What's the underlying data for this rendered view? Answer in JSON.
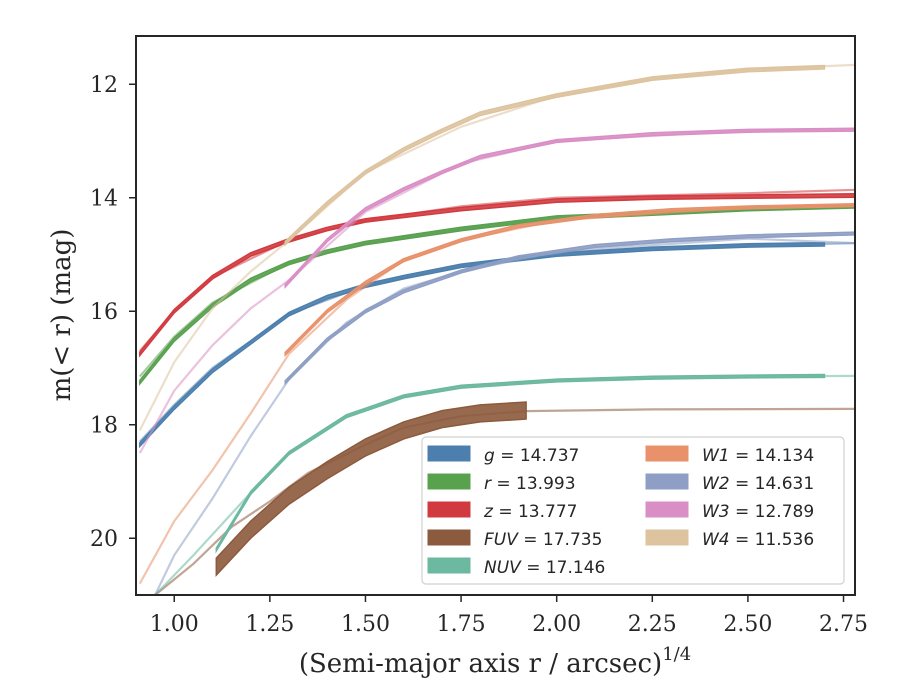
{
  "chart_data": {
    "type": "line",
    "xlabel": "(Semi-major axis r / arcsec)",
    "xlabel_super": "1/4",
    "ylabel": "m(< r) (mag)",
    "xlim": [
      0.9,
      2.78
    ],
    "ylim": [
      21.0,
      11.15
    ],
    "y_inverted": true,
    "grid": false,
    "legend_position": "lower-right",
    "x_ticks": [
      1.0,
      1.25,
      1.5,
      1.75,
      2.0,
      2.25,
      2.5,
      2.75
    ],
    "x_tick_labels": [
      "1.00",
      "1.25",
      "1.50",
      "1.75",
      "2.00",
      "2.25",
      "2.50",
      "2.75"
    ],
    "y_ticks": [
      12,
      14,
      16,
      18,
      20
    ],
    "y_tick_labels": [
      "12",
      "14",
      "16",
      "18",
      "20"
    ],
    "series": [
      {
        "name": "g = 14.737",
        "legend_prefix": "g",
        "legend_value": "= 14.737",
        "color": "#4c7fad",
        "band": [
          [
            0.91,
            18.35
          ],
          [
            1.0,
            17.7
          ],
          [
            1.1,
            17.05
          ],
          [
            1.2,
            16.55
          ],
          [
            1.3,
            16.05
          ],
          [
            1.4,
            15.75
          ],
          [
            1.5,
            15.55
          ],
          [
            1.6,
            15.4
          ],
          [
            1.75,
            15.2
          ],
          [
            2.0,
            15.0
          ],
          [
            2.25,
            14.9
          ],
          [
            2.5,
            14.84
          ],
          [
            2.7,
            14.82
          ]
        ],
        "width": 0.06,
        "model": [
          [
            0.91,
            18.3
          ],
          [
            1.0,
            17.65
          ],
          [
            1.1,
            17.0
          ],
          [
            1.3,
            16.05
          ],
          [
            1.5,
            15.55
          ],
          [
            1.75,
            15.2
          ],
          [
            2.0,
            15.0
          ],
          [
            2.25,
            14.9
          ],
          [
            2.5,
            14.84
          ],
          [
            2.78,
            14.8
          ]
        ]
      },
      {
        "name": "r = 13.993",
        "legend_prefix": "r",
        "legend_value": "= 13.993",
        "color": "#59a14f",
        "band": [
          [
            0.91,
            17.25
          ],
          [
            1.0,
            16.5
          ],
          [
            1.1,
            15.9
          ],
          [
            1.2,
            15.45
          ],
          [
            1.3,
            15.15
          ],
          [
            1.4,
            14.95
          ],
          [
            1.5,
            14.8
          ],
          [
            1.75,
            14.55
          ],
          [
            2.0,
            14.35
          ],
          [
            2.25,
            14.28
          ],
          [
            2.5,
            14.2
          ],
          [
            2.78,
            14.15
          ]
        ],
        "width": 0.06,
        "model": [
          [
            0.91,
            17.15
          ],
          [
            1.0,
            16.45
          ],
          [
            1.1,
            15.85
          ],
          [
            1.3,
            15.15
          ],
          [
            1.5,
            14.8
          ],
          [
            1.75,
            14.55
          ],
          [
            2.0,
            14.35
          ],
          [
            2.5,
            14.2
          ],
          [
            2.78,
            14.15
          ]
        ]
      },
      {
        "name": "z = 13.777",
        "legend_prefix": "z",
        "legend_value": "= 13.777",
        "color": "#d13b40",
        "band": [
          [
            0.91,
            16.75
          ],
          [
            1.0,
            16.0
          ],
          [
            1.1,
            15.4
          ],
          [
            1.2,
            15.0
          ],
          [
            1.3,
            14.75
          ],
          [
            1.4,
            14.55
          ],
          [
            1.5,
            14.4
          ],
          [
            1.75,
            14.2
          ],
          [
            2.0,
            14.05
          ],
          [
            2.25,
            14.0
          ],
          [
            2.5,
            13.98
          ],
          [
            2.78,
            13.96
          ]
        ],
        "width": 0.06,
        "model": [
          [
            0.91,
            16.7
          ],
          [
            1.0,
            16.0
          ],
          [
            1.1,
            15.4
          ],
          [
            1.3,
            14.75
          ],
          [
            1.5,
            14.4
          ],
          [
            1.75,
            14.15
          ],
          [
            2.0,
            14.0
          ],
          [
            2.5,
            13.92
          ],
          [
            2.78,
            13.86
          ]
        ]
      },
      {
        "name": "FUV = 17.735",
        "legend_prefix": "FUV",
        "legend_value": "= 17.735",
        "color": "#8c5a3c",
        "band": [
          [
            1.11,
            20.5
          ],
          [
            1.2,
            19.85
          ],
          [
            1.3,
            19.25
          ],
          [
            1.4,
            18.8
          ],
          [
            1.5,
            18.4
          ],
          [
            1.6,
            18.1
          ],
          [
            1.7,
            17.9
          ],
          [
            1.8,
            17.8
          ],
          [
            1.92,
            17.75
          ]
        ],
        "width": 0.3,
        "model": [
          [
            0.95,
            21.0
          ],
          [
            1.05,
            20.45
          ],
          [
            1.15,
            19.8
          ],
          [
            1.25,
            19.35
          ],
          [
            1.35,
            18.85
          ],
          [
            1.5,
            18.35
          ],
          [
            1.6,
            18.05
          ],
          [
            1.75,
            17.85
          ],
          [
            1.92,
            17.76
          ],
          [
            2.25,
            17.73
          ],
          [
            2.78,
            17.72
          ]
        ]
      },
      {
        "name": "NUV = 17.146",
        "legend_prefix": "NUV",
        "legend_value": "= 17.146",
        "color": "#6cb8a0",
        "band": [
          [
            1.11,
            20.2
          ],
          [
            1.2,
            19.2
          ],
          [
            1.3,
            18.5
          ],
          [
            1.45,
            17.85
          ],
          [
            1.6,
            17.5
          ],
          [
            1.75,
            17.33
          ],
          [
            2.0,
            17.22
          ],
          [
            2.25,
            17.17
          ],
          [
            2.5,
            17.15
          ],
          [
            2.7,
            17.14
          ]
        ],
        "width": 0.05,
        "model": [
          [
            0.95,
            21.0
          ],
          [
            1.05,
            20.3
          ],
          [
            1.2,
            19.2
          ],
          [
            1.3,
            18.5
          ],
          [
            1.45,
            17.85
          ],
          [
            1.6,
            17.5
          ],
          [
            1.75,
            17.33
          ],
          [
            2.0,
            17.22
          ],
          [
            2.5,
            17.15
          ],
          [
            2.78,
            17.14
          ]
        ]
      },
      {
        "name": "W1 = 14.134",
        "legend_prefix": "W1",
        "legend_value": "= 14.134",
        "color": "#e8916a",
        "band": [
          [
            1.29,
            16.75
          ],
          [
            1.4,
            16.0
          ],
          [
            1.5,
            15.5
          ],
          [
            1.6,
            15.1
          ],
          [
            1.75,
            14.75
          ],
          [
            1.9,
            14.5
          ],
          [
            2.1,
            14.32
          ],
          [
            2.3,
            14.22
          ],
          [
            2.5,
            14.17
          ],
          [
            2.78,
            14.13
          ]
        ],
        "width": 0.05,
        "model": [
          [
            0.91,
            20.8
          ],
          [
            1.0,
            19.7
          ],
          [
            1.1,
            18.8
          ],
          [
            1.2,
            17.8
          ],
          [
            1.3,
            16.75
          ],
          [
            1.45,
            15.8
          ],
          [
            1.6,
            15.1
          ],
          [
            1.75,
            14.75
          ],
          [
            2.0,
            14.4
          ],
          [
            2.5,
            14.17
          ],
          [
            2.78,
            14.13
          ]
        ]
      },
      {
        "name": "W2 = 14.631",
        "legend_prefix": "W2",
        "legend_value": "= 14.631",
        "color": "#8e9ec4",
        "band": [
          [
            1.29,
            17.25
          ],
          [
            1.4,
            16.5
          ],
          [
            1.5,
            16.0
          ],
          [
            1.6,
            15.65
          ],
          [
            1.75,
            15.3
          ],
          [
            1.9,
            15.05
          ],
          [
            2.1,
            14.85
          ],
          [
            2.3,
            14.75
          ],
          [
            2.5,
            14.68
          ],
          [
            2.78,
            14.63
          ]
        ],
        "width": 0.05,
        "model": [
          [
            0.95,
            21.0
          ],
          [
            1.0,
            20.3
          ],
          [
            1.1,
            19.3
          ],
          [
            1.2,
            18.2
          ],
          [
            1.3,
            17.2
          ],
          [
            1.45,
            16.2
          ],
          [
            1.6,
            15.6
          ],
          [
            1.75,
            15.3
          ],
          [
            2.0,
            14.95
          ],
          [
            2.5,
            14.72
          ],
          [
            2.78,
            14.8
          ]
        ]
      },
      {
        "name": "W3 = 12.789",
        "legend_prefix": "W3",
        "legend_value": "= 12.789",
        "color": "#d98fc5",
        "band": [
          [
            1.29,
            15.55
          ],
          [
            1.4,
            14.75
          ],
          [
            1.5,
            14.2
          ],
          [
            1.6,
            13.85
          ],
          [
            1.7,
            13.55
          ],
          [
            1.8,
            13.28
          ],
          [
            2.0,
            13.0
          ],
          [
            2.25,
            12.88
          ],
          [
            2.5,
            12.82
          ],
          [
            2.78,
            12.8
          ]
        ],
        "width": 0.05,
        "model": [
          [
            0.91,
            18.5
          ],
          [
            1.0,
            17.4
          ],
          [
            1.1,
            16.6
          ],
          [
            1.2,
            15.95
          ],
          [
            1.3,
            15.45
          ],
          [
            1.5,
            14.25
          ],
          [
            1.75,
            13.4
          ],
          [
            2.0,
            13.0
          ],
          [
            2.5,
            12.82
          ],
          [
            2.78,
            12.8
          ]
        ]
      },
      {
        "name": "W4 = 11.536",
        "legend_prefix": "W4",
        "legend_value": "= 11.536",
        "color": "#ddc39e",
        "band": [
          [
            1.29,
            14.8
          ],
          [
            1.4,
            14.1
          ],
          [
            1.5,
            13.55
          ],
          [
            1.6,
            13.15
          ],
          [
            1.7,
            12.82
          ],
          [
            1.8,
            12.52
          ],
          [
            2.0,
            12.2
          ],
          [
            2.25,
            11.9
          ],
          [
            2.5,
            11.75
          ],
          [
            2.7,
            11.7
          ]
        ],
        "width": 0.06,
        "model": [
          [
            0.91,
            18.1
          ],
          [
            1.0,
            16.9
          ],
          [
            1.1,
            15.95
          ],
          [
            1.2,
            15.3
          ],
          [
            1.3,
            14.75
          ],
          [
            1.5,
            13.55
          ],
          [
            1.75,
            12.75
          ],
          [
            2.0,
            12.2
          ],
          [
            2.25,
            11.9
          ],
          [
            2.5,
            11.74
          ],
          [
            2.78,
            11.66
          ]
        ]
      }
    ],
    "legend_columns": [
      [
        "g = 14.737",
        "r = 13.993",
        "z = 13.777",
        "FUV = 17.735",
        "NUV = 17.146"
      ],
      [
        "W1 = 14.134",
        "W2 = 14.631",
        "W3 = 12.789",
        "W4 = 11.536"
      ]
    ]
  }
}
